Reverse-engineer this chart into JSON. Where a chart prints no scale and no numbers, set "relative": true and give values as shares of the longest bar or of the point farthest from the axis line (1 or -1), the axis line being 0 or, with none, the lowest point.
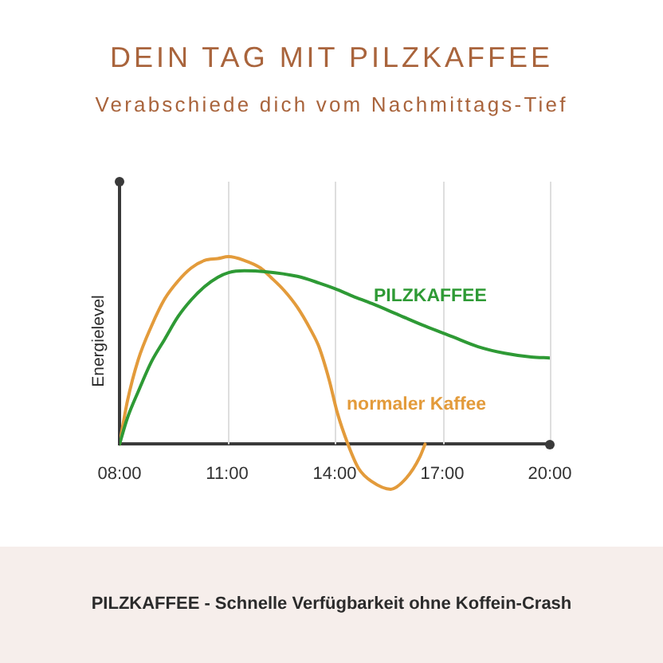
{
  "chart_data": {
    "type": "line",
    "title": "DEIN TAG MIT PILZKAFFEE",
    "subtitle": "Verabschiede dich vom Nachmittags-Tief",
    "ylabel": "Energielevel",
    "relative": true,
    "xlim": [
      8,
      20
    ],
    "xticks": [
      {
        "value": 8,
        "label": "08:00"
      },
      {
        "value": 11,
        "label": "11:00"
      },
      {
        "value": 14,
        "label": "14:00"
      },
      {
        "value": 17,
        "label": "17:00"
      },
      {
        "value": 20,
        "label": "20:00"
      }
    ],
    "grid": "x",
    "legend": false,
    "annotations": [
      "PILZKAFFEE - Schnelle Verfügbarkeit ohne Koffein-Crash"
    ],
    "series": [
      {
        "name": "PILZKAFFEE",
        "color": "#2e9a35",
        "x": [
          8,
          8.22,
          8.52,
          8.89,
          9.26,
          9.63,
          10,
          10.37,
          10.74,
          11.04,
          11.48,
          12.07,
          12.96,
          13.56,
          14,
          14.5,
          15.04,
          15.78,
          16.52,
          17.26,
          18,
          18.74,
          19.48,
          20
        ],
        "values": [
          0,
          0.14,
          0.28,
          0.44,
          0.56,
          0.68,
          0.77,
          0.84,
          0.89,
          0.915,
          0.925,
          0.92,
          0.895,
          0.86,
          0.83,
          0.79,
          0.75,
          0.69,
          0.63,
          0.575,
          0.52,
          0.485,
          0.465,
          0.46
        ]
      },
      {
        "name": "normaler Kaffee",
        "color": "#e39b3b",
        "x": [
          8,
          8.22,
          8.52,
          8.89,
          9.26,
          9.63,
          10,
          10.37,
          10.74,
          11.04,
          11.48,
          11.93,
          12.22,
          12.59,
          12.96,
          13.33,
          13.56,
          13.85,
          14.07,
          14.37,
          14.67,
          15.04,
          15.56,
          16,
          16.37,
          16.52
        ],
        "values": [
          0,
          0.23,
          0.45,
          0.63,
          0.775,
          0.87,
          0.94,
          0.98,
          0.99,
          1,
          0.98,
          0.94,
          0.89,
          0.82,
          0.73,
          0.61,
          0.52,
          0.34,
          0.17,
          0,
          -0.13,
          -0.2,
          -0.24,
          -0.18,
          -0.07,
          0
        ]
      }
    ]
  }
}
